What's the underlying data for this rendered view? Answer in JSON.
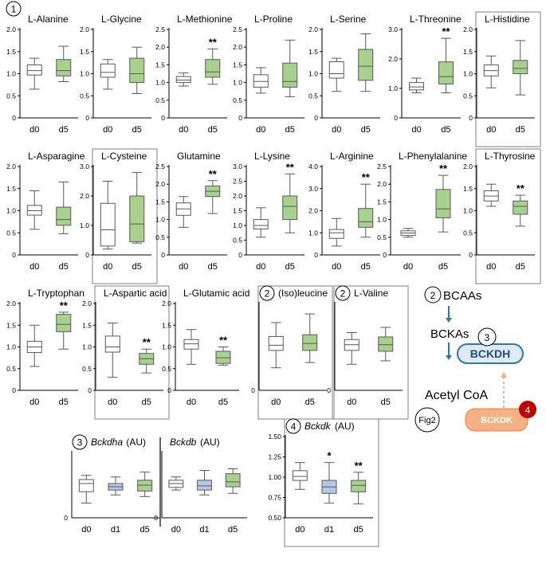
{
  "figure": {
    "panel_label": "1",
    "axis_zero_label": "0",
    "box_colors": {
      "d0": "#ffffff",
      "d1": "#b4c7e7",
      "d5": "#a9d18e"
    },
    "outline_color": "#595959"
  },
  "chart_data": [
    {
      "type": "box",
      "title": "L-Alanine",
      "categories": [
        "d0",
        "d5"
      ],
      "ylim": [
        0,
        2.0
      ],
      "yticks": [
        "0",
        "0.5",
        "1.0",
        "1.5",
        "2.0"
      ],
      "boxes": [
        {
          "group": "d0",
          "whisker_low": 0.65,
          "q1": 0.97,
          "median": 1.07,
          "q3": 1.2,
          "whisker_high": 1.35
        },
        {
          "group": "d5",
          "whisker_low": 0.82,
          "q1": 0.95,
          "median": 1.07,
          "q3": 1.32,
          "whisker_high": 1.62
        }
      ],
      "annotations": []
    },
    {
      "type": "box",
      "title": "L-Glycine",
      "categories": [
        "d0",
        "d5"
      ],
      "ylim": [
        0,
        2.0
      ],
      "yticks": [
        "0",
        "0.5",
        "1.0",
        "1.5",
        "2.0"
      ],
      "boxes": [
        {
          "group": "d0",
          "whisker_low": 0.65,
          "q1": 0.92,
          "median": 1.03,
          "q3": 1.22,
          "whisker_high": 1.32
        },
        {
          "group": "d5",
          "whisker_low": 0.55,
          "q1": 0.8,
          "median": 1.0,
          "q3": 1.35,
          "whisker_high": 1.6
        }
      ],
      "annotations": []
    },
    {
      "type": "box",
      "title": "L-Methionine",
      "categories": [
        "d0",
        "d5"
      ],
      "ylim": [
        0,
        2.5
      ],
      "yticks": [
        "0",
        "0.5",
        "1.0",
        "1.5",
        "2.0",
        "2.5"
      ],
      "boxes": [
        {
          "group": "d0",
          "whisker_low": 0.9,
          "q1": 1.0,
          "median": 1.07,
          "q3": 1.17,
          "whisker_high": 1.27
        },
        {
          "group": "d5",
          "whisker_low": 0.95,
          "q1": 1.15,
          "median": 1.3,
          "q3": 1.65,
          "whisker_high": 1.95
        }
      ],
      "annotations": [
        {
          "group": "d5",
          "text": "**"
        }
      ]
    },
    {
      "type": "box",
      "title": "L-Proline",
      "categories": [
        "d0",
        "d5"
      ],
      "ylim": [
        0,
        2.5
      ],
      "yticks": [
        "0",
        "0.5",
        "1.0",
        "1.5",
        "2.0",
        "2.5"
      ],
      "boxes": [
        {
          "group": "d0",
          "whisker_low": 0.7,
          "q1": 0.87,
          "median": 1.03,
          "q3": 1.22,
          "whisker_high": 1.42
        },
        {
          "group": "d5",
          "whisker_low": 0.6,
          "q1": 0.87,
          "median": 1.03,
          "q3": 1.55,
          "whisker_high": 2.2
        }
      ],
      "annotations": []
    },
    {
      "type": "box",
      "title": "L-Serine",
      "categories": [
        "d0",
        "d5"
      ],
      "ylim": [
        0,
        2.0
      ],
      "yticks": [
        "0",
        "0.5",
        "1.0",
        "1.5",
        "2.0"
      ],
      "boxes": [
        {
          "group": "d0",
          "whisker_low": 0.6,
          "q1": 0.9,
          "median": 1.0,
          "q3": 1.27,
          "whisker_high": 1.35
        },
        {
          "group": "d5",
          "whisker_low": 0.6,
          "q1": 0.85,
          "median": 1.17,
          "q3": 1.55,
          "whisker_high": 1.9
        }
      ],
      "annotations": []
    },
    {
      "type": "box",
      "title": "L-Threonine",
      "categories": [
        "d0",
        "d5"
      ],
      "ylim": [
        0,
        3.0
      ],
      "yticks": [
        "0",
        "1.0",
        "2.0",
        "3.0"
      ],
      "boxes": [
        {
          "group": "d0",
          "whisker_low": 0.85,
          "q1": 0.95,
          "median": 1.05,
          "q3": 1.2,
          "whisker_high": 1.35
        },
        {
          "group": "d5",
          "whisker_low": 0.85,
          "q1": 1.15,
          "median": 1.4,
          "q3": 1.9,
          "whisker_high": 2.7
        }
      ],
      "annotations": [
        {
          "group": "d5",
          "text": "**"
        }
      ]
    },
    {
      "type": "box",
      "title": "L-Histidine",
      "categories": [
        "d0",
        "d5"
      ],
      "ylim": [
        0,
        2.0
      ],
      "yticks": [
        "0",
        "0.5",
        "1.0",
        "1.5",
        "2.0"
      ],
      "boxes": [
        {
          "group": "d0",
          "whisker_low": 0.68,
          "q1": 0.95,
          "median": 1.07,
          "q3": 1.2,
          "whisker_high": 1.4
        },
        {
          "group": "d5",
          "whisker_low": 0.52,
          "q1": 1.0,
          "median": 1.12,
          "q3": 1.3,
          "whisker_high": 1.75
        }
      ],
      "annotations": []
    },
    {
      "type": "box",
      "title": "L-Asparagine",
      "categories": [
        "d0",
        "d5"
      ],
      "ylim": [
        0,
        2.0
      ],
      "yticks": [
        "0",
        "0.5",
        "1.0",
        "1.5",
        "2.0"
      ],
      "boxes": [
        {
          "group": "d0",
          "whisker_low": 0.58,
          "q1": 0.9,
          "median": 1.0,
          "q3": 1.12,
          "whisker_high": 1.45
        },
        {
          "group": "d5",
          "whisker_low": 0.48,
          "q1": 0.67,
          "median": 0.8,
          "q3": 1.08,
          "whisker_high": 1.65
        }
      ],
      "annotations": []
    },
    {
      "type": "box",
      "title": "L-Cysteine",
      "categories": [
        "d0",
        "d5"
      ],
      "ylim": [
        0,
        3.0
      ],
      "yticks": [
        "0",
        "1.0",
        "2.0",
        "3.0"
      ],
      "boxes": [
        {
          "group": "d0",
          "whisker_low": 0.2,
          "q1": 0.3,
          "median": 0.85,
          "q3": 1.75,
          "whisker_high": 2.5
        },
        {
          "group": "d5",
          "whisker_low": 0.4,
          "q1": 0.45,
          "median": 1.05,
          "q3": 2.0,
          "whisker_high": 2.8
        }
      ],
      "annotations": []
    },
    {
      "type": "box",
      "title": "Glutamine",
      "categories": [
        "d0",
        "d5"
      ],
      "ylim": [
        0,
        2.5
      ],
      "yticks": [
        "0",
        "0.5",
        "1.0",
        "1.5",
        "2.0",
        "2.5"
      ],
      "boxes": [
        {
          "group": "d0",
          "whisker_low": 0.78,
          "q1": 1.12,
          "median": 1.3,
          "q3": 1.47,
          "whisker_high": 1.65
        },
        {
          "group": "d5",
          "whisker_low": 1.17,
          "q1": 1.65,
          "median": 1.8,
          "q3": 1.95,
          "whisker_high": 2.1
        }
      ],
      "annotations": [
        {
          "group": "d5",
          "text": "**"
        }
      ]
    },
    {
      "type": "box",
      "title": "L-Lysine",
      "categories": [
        "d0",
        "d5"
      ],
      "ylim": [
        0,
        3.0
      ],
      "yticks": [
        "0",
        "0.5",
        "1.0",
        "1.5",
        "2.0",
        "2.5",
        "3.0"
      ],
      "boxes": [
        {
          "group": "d0",
          "whisker_low": 0.6,
          "q1": 0.88,
          "median": 1.0,
          "q3": 1.2,
          "whisker_high": 1.6
        },
        {
          "group": "d5",
          "whisker_low": 0.75,
          "q1": 1.2,
          "median": 1.65,
          "q3": 2.0,
          "whisker_high": 2.75
        }
      ],
      "annotations": [
        {
          "group": "d5",
          "text": "**"
        }
      ]
    },
    {
      "type": "box",
      "title": "L-Arginine",
      "categories": [
        "d0",
        "d5"
      ],
      "ylim": [
        0,
        4.0
      ],
      "yticks": [
        "0",
        "1.0",
        "2.0",
        "3.0",
        "4.0"
      ],
      "boxes": [
        {
          "group": "d0",
          "whisker_low": 0.4,
          "q1": 0.75,
          "median": 1.0,
          "q3": 1.15,
          "whisker_high": 1.65
        },
        {
          "group": "d5",
          "whisker_low": 0.8,
          "q1": 1.25,
          "median": 1.5,
          "q3": 2.1,
          "whisker_high": 3.2
        }
      ],
      "annotations": [
        {
          "group": "d5",
          "text": "**"
        }
      ]
    },
    {
      "type": "box",
      "title": "L-Phenylalanine",
      "categories": [
        "d0",
        "d5"
      ],
      "ylim": [
        0,
        2.5
      ],
      "yticks": [
        "0",
        "0.5",
        "1.0",
        "1.5",
        "2.0",
        "2.5"
      ],
      "boxes": [
        {
          "group": "d0",
          "whisker_low": 0.5,
          "q1": 0.55,
          "median": 0.62,
          "q3": 0.68,
          "whisker_high": 0.75
        },
        {
          "group": "d5",
          "whisker_low": 0.65,
          "q1": 1.05,
          "median": 1.3,
          "q3": 1.85,
          "whisker_high": 2.25
        }
      ],
      "annotations": [
        {
          "group": "d5",
          "text": "**"
        }
      ]
    },
    {
      "type": "box",
      "title": "L-Thyrosine",
      "categories": [
        "d0",
        "d5"
      ],
      "ylim": [
        0,
        2.0
      ],
      "yticks": [
        "0",
        "0.5",
        "1.0",
        "1.5",
        "2.0"
      ],
      "boxes": [
        {
          "group": "d0",
          "whisker_low": 1.1,
          "q1": 1.22,
          "median": 1.33,
          "q3": 1.45,
          "whisker_high": 1.6
        },
        {
          "group": "d5",
          "whisker_low": 0.65,
          "q1": 0.92,
          "median": 1.1,
          "q3": 1.22,
          "whisker_high": 1.35
        }
      ],
      "annotations": [
        {
          "group": "d5",
          "text": "**"
        }
      ]
    },
    {
      "type": "box",
      "title": "L-Tryptophan",
      "categories": [
        "d0",
        "d5"
      ],
      "ylim": [
        0,
        2.0
      ],
      "yticks": [
        "0",
        "0.5",
        "1.0",
        "1.5",
        "2.0"
      ],
      "boxes": [
        {
          "group": "d0",
          "whisker_low": 0.55,
          "q1": 0.87,
          "median": 1.0,
          "q3": 1.13,
          "whisker_high": 1.5
        },
        {
          "group": "d5",
          "whisker_low": 0.95,
          "q1": 1.35,
          "median": 1.52,
          "q3": 1.75,
          "whisker_high": 1.8
        }
      ],
      "annotations": [
        {
          "group": "d5",
          "text": "**"
        }
      ]
    },
    {
      "type": "box",
      "title": "L-Aspartic acid",
      "categories": [
        "d0",
        "d5"
      ],
      "ylim": [
        0,
        2.0
      ],
      "yticks": [
        "0",
        "0.5",
        "1.0",
        "1.5",
        "2.0"
      ],
      "boxes": [
        {
          "group": "d0",
          "whisker_low": 0.3,
          "q1": 0.88,
          "median": 1.0,
          "q3": 1.25,
          "whisker_high": 1.55
        },
        {
          "group": "d5",
          "whisker_low": 0.4,
          "q1": 0.6,
          "median": 0.73,
          "q3": 0.85,
          "whisker_high": 0.95
        }
      ],
      "annotations": [
        {
          "group": "d5",
          "text": "**"
        }
      ]
    },
    {
      "type": "box",
      "title": "L-Glutamic acid",
      "categories": [
        "d0",
        "d5"
      ],
      "ylim": [
        0,
        2.0
      ],
      "yticks": [
        "0",
        "0.5",
        "1.0",
        "1.5",
        "2.0"
      ],
      "boxes": [
        {
          "group": "d0",
          "whisker_low": 0.6,
          "q1": 0.95,
          "median": 1.07,
          "q3": 1.17,
          "whisker_high": 1.4
        },
        {
          "group": "d5",
          "whisker_low": 0.58,
          "q1": 0.62,
          "median": 0.75,
          "q3": 0.9,
          "whisker_high": 1.0
        }
      ],
      "annotations": [
        {
          "group": "d5",
          "text": "**"
        }
      ]
    },
    {
      "type": "box",
      "title": "(Iso)leucine",
      "title_badge": "2",
      "categories": [
        "d0",
        "d5"
      ],
      "ylim": [
        0,
        2.5
      ],
      "yticks": [],
      "boxes": [
        {
          "group": "d0",
          "whisker_low": 0.65,
          "q1": 1.15,
          "median": 1.3,
          "q3": 1.55,
          "whisker_high": 1.95
        },
        {
          "group": "d5",
          "whisker_low": 0.8,
          "q1": 1.15,
          "median": 1.35,
          "q3": 1.6,
          "whisker_high": 2.2
        }
      ],
      "annotations": []
    },
    {
      "type": "box",
      "title": "L-Valine",
      "title_badge": "2",
      "categories": [
        "d0",
        "d5"
      ],
      "ylim": [
        0,
        2.0
      ],
      "yticks": [],
      "boxes": [
        {
          "group": "d0",
          "whisker_low": 0.6,
          "q1": 0.92,
          "median": 1.05,
          "q3": 1.17,
          "whisker_high": 1.33
        },
        {
          "group": "d5",
          "whisker_low": 0.68,
          "q1": 0.9,
          "median": 1.05,
          "q3": 1.23,
          "whisker_high": 1.45
        }
      ],
      "annotations": []
    },
    {
      "type": "box",
      "title": "Bckdha",
      "title_badge": "3",
      "unit": "(AU)",
      "categories": [
        "d0",
        "d1",
        "d5"
      ],
      "ylim": [
        0,
        2.0
      ],
      "yticks": [],
      "boxes": [
        {
          "group": "d0",
          "whisker_low": 0.45,
          "q1": 0.8,
          "median": 1.05,
          "q3": 1.17,
          "whisker_high": 1.3
        },
        {
          "group": "d1",
          "whisker_low": 0.7,
          "q1": 0.85,
          "median": 0.95,
          "q3": 1.05,
          "whisker_high": 1.25
        },
        {
          "group": "d5",
          "whisker_low": 0.65,
          "q1": 0.82,
          "median": 1.0,
          "q3": 1.15,
          "whisker_high": 1.4
        }
      ],
      "annotations": []
    },
    {
      "type": "box",
      "title": "Bckdb",
      "unit": "(AU)",
      "categories": [
        "d0",
        "d1",
        "d5"
      ],
      "ylim": [
        0,
        2.0
      ],
      "yticks": [],
      "boxes": [
        {
          "group": "d0",
          "whisker_low": 0.85,
          "q1": 0.93,
          "median": 1.05,
          "q3": 1.15,
          "whisker_high": 1.25
        },
        {
          "group": "d1",
          "whisker_low": 0.7,
          "q1": 0.85,
          "median": 0.98,
          "q3": 1.15,
          "whisker_high": 1.45
        },
        {
          "group": "d5",
          "whisker_low": 0.75,
          "q1": 0.95,
          "median": 1.1,
          "q3": 1.35,
          "whisker_high": 1.5
        }
      ],
      "annotations": []
    },
    {
      "type": "box",
      "title": "Bckdk",
      "title_badge": "4",
      "unit": "(AU)",
      "categories": [
        "d0",
        "d1",
        "d5"
      ],
      "ylim": [
        0.5,
        1.5
      ],
      "yticks": [
        "0.50",
        "0.75",
        "1.00",
        "1.25",
        "1.50"
      ],
      "boxes": [
        {
          "group": "d0",
          "whisker_low": 0.85,
          "q1": 0.96,
          "median": 1.01,
          "q3": 1.08,
          "whisker_high": 1.18
        },
        {
          "group": "d1",
          "whisker_low": 0.68,
          "q1": 0.8,
          "median": 0.88,
          "q3": 0.96,
          "whisker_high": 1.18
        },
        {
          "group": "d5",
          "whisker_low": 0.67,
          "q1": 0.82,
          "median": 0.9,
          "q3": 0.96,
          "whisker_high": 1.06
        }
      ],
      "annotations": [
        {
          "group": "d1",
          "text": "*"
        },
        {
          "group": "d5",
          "text": "**"
        }
      ]
    }
  ],
  "diagram": {
    "bcaas_badge": "2",
    "bcaas": "BCAAs",
    "bckas": "BCKAs",
    "bckdh_badge": "3",
    "bckdh": "BCKDH",
    "acetyl_coa": "Acetyl CoA",
    "fig_ref": "Fig2",
    "bckdk": "BCKDK",
    "bckdk_badge": "4"
  }
}
